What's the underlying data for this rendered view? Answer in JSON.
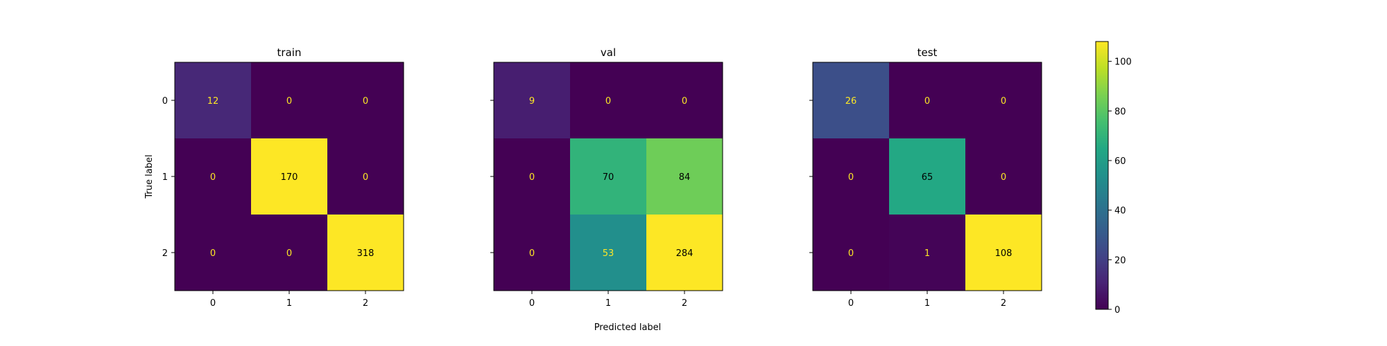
{
  "chart_data": [
    {
      "type": "heatmap",
      "title": "train",
      "ylabel": "True label",
      "x_ticks": [
        "0",
        "1",
        "2"
      ],
      "y_ticks": [
        "0",
        "1",
        "2"
      ],
      "matrix": [
        [
          12,
          0,
          0
        ],
        [
          0,
          170,
          0
        ],
        [
          0,
          0,
          318
        ]
      ],
      "cell_labels": [
        [
          "12",
          "0",
          "0"
        ],
        [
          "0",
          "170",
          "0"
        ],
        [
          "0",
          "0",
          "318"
        ]
      ]
    },
    {
      "type": "heatmap",
      "title": "val",
      "xlabel": "Predicted label",
      "x_ticks": [
        "0",
        "1",
        "2"
      ],
      "y_ticks": [
        "",
        "",
        ""
      ],
      "matrix": [
        [
          9,
          0,
          0
        ],
        [
          0,
          70,
          84
        ],
        [
          0,
          53,
          284
        ]
      ],
      "cell_labels": [
        [
          "9",
          "0",
          "0"
        ],
        [
          "0",
          "70",
          "84"
        ],
        [
          "0",
          "53",
          "284"
        ]
      ]
    },
    {
      "type": "heatmap",
      "title": "test",
      "x_ticks": [
        "0",
        "1",
        "2"
      ],
      "y_ticks": [
        "",
        "",
        ""
      ],
      "matrix": [
        [
          26,
          0,
          0
        ],
        [
          0,
          65,
          0
        ],
        [
          0,
          1,
          108
        ]
      ],
      "cell_labels": [
        [
          "26",
          "0",
          "0"
        ],
        [
          "0",
          "65",
          "0"
        ],
        [
          "0",
          "1",
          "108"
        ]
      ]
    }
  ],
  "colorbar": {
    "colormap": "viridis",
    "range": [
      0,
      108
    ],
    "ticks": [
      0,
      20,
      40,
      60,
      80,
      100
    ],
    "tick_labels": [
      "0",
      "20",
      "40",
      "60",
      "80",
      "100"
    ]
  },
  "colors": {
    "text_dark": "#000000",
    "text_light": "#fde725"
  }
}
